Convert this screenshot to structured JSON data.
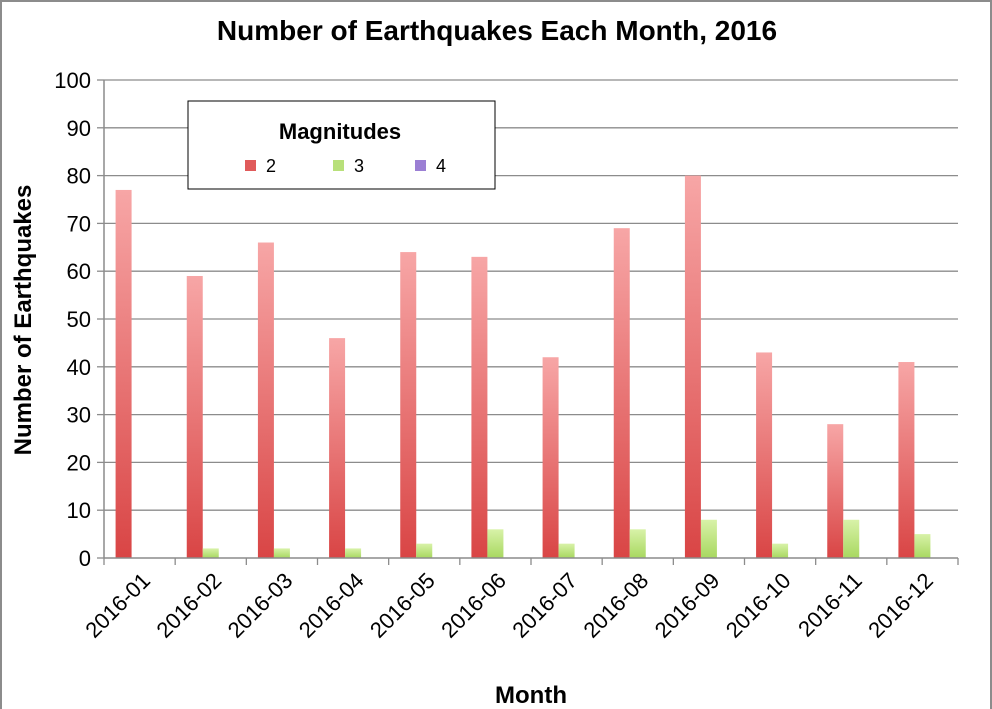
{
  "chart_data": {
    "type": "bar",
    "title": "Number of Earthquakes Each Month, 2016",
    "xlabel": "Month",
    "ylabel": "Number of Earthquakes",
    "ylim": [
      0,
      100
    ],
    "yticks": [
      "0",
      "10",
      "20",
      "30",
      "40",
      "50",
      "60",
      "70",
      "80",
      "90",
      "100"
    ],
    "grid": true,
    "categories": [
      "2016-01",
      "2016-02",
      "2016-03",
      "2016-04",
      "2016-05",
      "2016-06",
      "2016-07",
      "2016-08",
      "2016-09",
      "2016-10",
      "2016-11",
      "2016-12"
    ],
    "series": [
      {
        "name": "2",
        "color": "#e05a5a",
        "values": [
          77,
          59,
          66,
          46,
          64,
          63,
          42,
          69,
          80,
          43,
          28,
          41
        ]
      },
      {
        "name": "3",
        "color": "#b8e07a",
        "values": [
          0,
          2,
          2,
          2,
          3,
          6,
          3,
          6,
          8,
          3,
          8,
          5
        ]
      },
      {
        "name": "4",
        "color": "#9b7fd4",
        "values": [
          0,
          0,
          0,
          0,
          0,
          0,
          0,
          0,
          0,
          0,
          0,
          0
        ]
      }
    ],
    "legend": {
      "title": "Magnitudes",
      "position": "top-left"
    }
  }
}
